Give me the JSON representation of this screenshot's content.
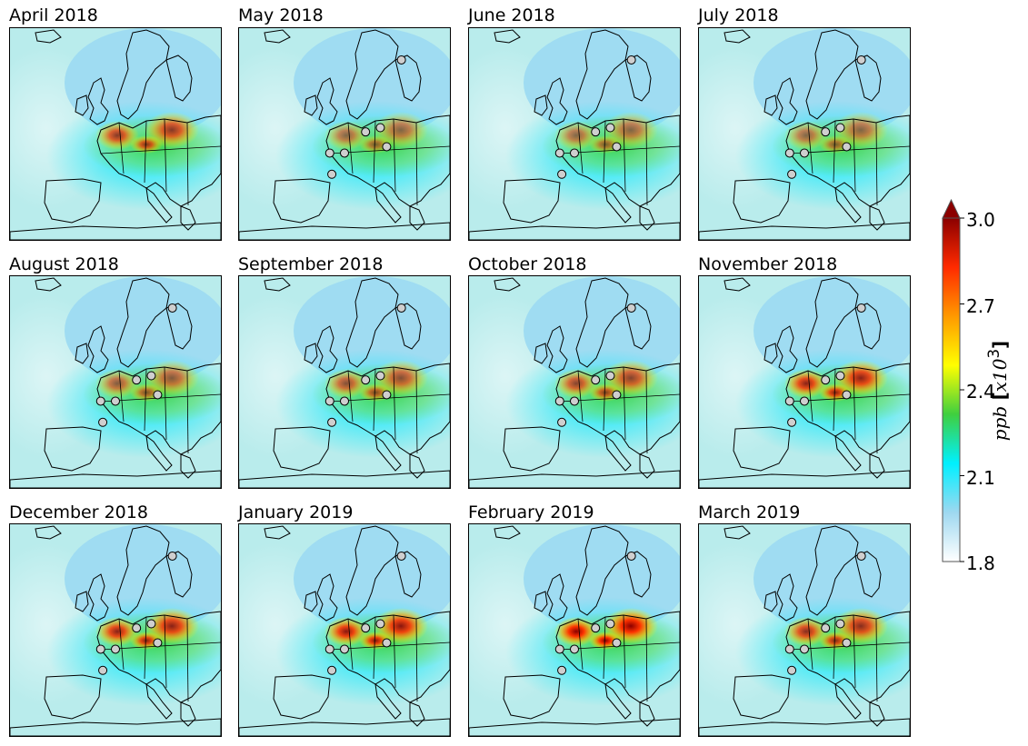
{
  "panels": [
    {
      "title": "April 2018"
    },
    {
      "title": "May 2018"
    },
    {
      "title": "June 2018"
    },
    {
      "title": "July 2018"
    },
    {
      "title": "August 2018"
    },
    {
      "title": "September 2018"
    },
    {
      "title": "October 2018"
    },
    {
      "title": "November 2018"
    },
    {
      "title": "December 2018"
    },
    {
      "title": "January 2019"
    },
    {
      "title": "February 2019"
    },
    {
      "title": "March 2019"
    }
  ],
  "colorbar": {
    "unit_var": "ppb",
    "unit_scale": "x10",
    "unit_exp": "3",
    "min": 1.8,
    "max": 3.0,
    "extend": "max",
    "ticks": [
      "1.8",
      "2.1",
      "2.4",
      "2.7",
      "3.0"
    ],
    "colors": [
      "#ffffff",
      "#9ed8f0",
      "#00f0ff",
      "#3fcf3f",
      "#ffff00",
      "#ff9900",
      "#ff2a00",
      "#8b0000"
    ]
  },
  "hotspot_intensity": [
    0.75,
    0.55,
    0.55,
    0.55,
    0.6,
    0.65,
    0.7,
    0.85,
    0.85,
    0.9,
    1.0,
    0.8
  ],
  "station_markers_visible": [
    false,
    true,
    true,
    true,
    true,
    true,
    true,
    true,
    true,
    true,
    true,
    true
  ]
}
